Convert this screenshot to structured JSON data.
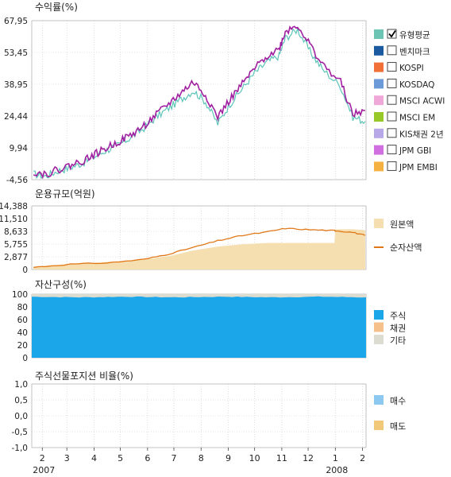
{
  "chart_data": [
    {
      "type": "line",
      "title": "수익률(%)",
      "y_ticks": [
        "67,95",
        "53,45",
        "38,95",
        "24,44",
        "9,94",
        "-4,56"
      ],
      "ylim": [
        -4.56,
        67.95
      ],
      "x": [
        "2007-01-22",
        "2007-02-05",
        "2007-02-19",
        "2007-03-05",
        "2007-03-19",
        "2007-04-02",
        "2007-04-16",
        "2007-04-30",
        "2007-05-14",
        "2007-05-28",
        "2007-06-11",
        "2007-06-25",
        "2007-07-09",
        "2007-07-23",
        "2007-08-06",
        "2007-08-20",
        "2007-09-03",
        "2007-09-17",
        "2007-10-01",
        "2007-10-15",
        "2007-10-29",
        "2007-11-05",
        "2007-11-19",
        "2007-12-03",
        "2007-12-17",
        "2008-01-07",
        "2008-01-21",
        "2008-02-04"
      ],
      "series": [
        {
          "name": "유형평균",
          "color": "#5cc4b8",
          "values": [
            -2,
            -3,
            -0.5,
            1,
            3,
            6,
            9,
            11.5,
            15,
            19,
            24,
            28,
            32,
            36,
            31,
            21,
            30,
            37,
            44,
            49,
            52,
            60,
            64,
            54,
            46,
            38,
            24,
            22
          ]
        },
        {
          "color": "#a020a0",
          "values": [
            -1,
            -2,
            0,
            2,
            4,
            7,
            10,
            13,
            16,
            20,
            25,
            30,
            35,
            40,
            34,
            24,
            32,
            39,
            46,
            52,
            55,
            63,
            66,
            57,
            48,
            40,
            25,
            27
          ]
        }
      ],
      "legend": [
        {
          "label": "유형평균",
          "color": "#6cc4b4",
          "checked": true
        },
        {
          "label": "벤치마크",
          "color": "#1c5aa0",
          "checked": false
        },
        {
          "label": "KOSPI",
          "color": "#f07038",
          "checked": false
        },
        {
          "label": "KOSDAQ",
          "color": "#6a9ad8",
          "checked": false
        },
        {
          "label": "MSCI ACWI",
          "color": "#f0a8d8",
          "checked": false
        },
        {
          "label": "MSCI EM",
          "color": "#98c828",
          "checked": false
        },
        {
          "label": "KIS채권 2년",
          "color": "#b8a8e8",
          "checked": false
        },
        {
          "label": "JPM GBI",
          "color": "#d070e0",
          "checked": false
        },
        {
          "label": "JPM EMBI",
          "color": "#f4b040",
          "checked": false
        }
      ],
      "grid": true
    },
    {
      "type": "area",
      "title": "운용규모(억원)",
      "y_ticks": [
        "14,388",
        "11,510",
        "8,633",
        "5,755",
        "2,877",
        "0"
      ],
      "ylim": [
        0,
        14388
      ],
      "x": [
        "2007-01-22",
        "2007-03-05",
        "2007-04-16",
        "2007-05-28",
        "2007-06-25",
        "2007-07-23",
        "2007-08-20",
        "2007-09-17",
        "2007-10-15",
        "2007-11-05",
        "2007-12-03",
        "2007-12-31",
        "2008-01-01",
        "2008-01-21",
        "2008-02-04"
      ],
      "series": [
        {
          "name": "원본액",
          "color": "#f5deb0",
          "values": [
            600,
            1300,
            1700,
            2300,
            3000,
            4300,
            5200,
            5700,
            6000,
            6000,
            6000,
            6000,
            9100,
            9100,
            8900
          ]
        },
        {
          "name": "순자산액",
          "color": "#e07818",
          "values": [
            500,
            1200,
            1500,
            2300,
            3500,
            5000,
            6500,
            7700,
            8500,
            9300,
            9000,
            8800,
            8800,
            8400,
            7700
          ]
        }
      ],
      "legend": [
        {
          "label": "원본액",
          "color": "#f5deb0"
        },
        {
          "label": "순자산액",
          "color": "#e07818"
        }
      ],
      "grid": true
    },
    {
      "type": "area",
      "title": "자산구성(%)",
      "y_ticks": [
        "100",
        "80",
        "60",
        "40",
        "20",
        "0"
      ],
      "ylim": [
        0,
        100
      ],
      "series": [
        {
          "name": "주식",
          "color": "#1aa6e8",
          "values": [
            96,
            95,
            96,
            95,
            96,
            95,
            96,
            95
          ]
        },
        {
          "name": "채권",
          "color": "#f5c08a",
          "values": [
            0,
            0,
            0,
            0,
            0,
            0,
            0,
            0
          ]
        },
        {
          "name": "기타",
          "color": "#dcdcd0",
          "values": [
            4,
            5,
            4,
            5,
            4,
            5,
            4,
            5
          ]
        }
      ],
      "legend": [
        {
          "label": "주식",
          "color": "#1aa6e8"
        },
        {
          "label": "채권",
          "color": "#f5c08a"
        },
        {
          "label": "기타",
          "color": "#dcdcd0"
        }
      ],
      "grid": true
    },
    {
      "type": "bar",
      "title": "주식선물포지션 비율(%)",
      "y_ticks": [
        "1,0",
        "0,5",
        "0,0",
        "-0,5",
        "-1,0"
      ],
      "ylim": [
        -1,
        1
      ],
      "series": [
        {
          "name": "매수",
          "color": "#8cc8f0",
          "values": []
        },
        {
          "name": "매도",
          "color": "#f0c878",
          "values": []
        }
      ],
      "legend": [
        {
          "label": "매수",
          "color": "#8cc8f0"
        },
        {
          "label": "매도",
          "color": "#f0c878"
        }
      ],
      "grid": true
    }
  ],
  "x_axis": {
    "month_labels": [
      "2",
      "3",
      "4",
      "5",
      "6",
      "7",
      "8",
      "9",
      "10",
      "11",
      "12",
      "1",
      "2"
    ],
    "month_dates": [
      "2007-02-01",
      "2007-03-01",
      "2007-04-01",
      "2007-05-01",
      "2007-06-01",
      "2007-07-01",
      "2007-08-01",
      "2007-09-01",
      "2007-10-01",
      "2007-11-01",
      "2007-12-01",
      "2008-01-01",
      "2008-02-01"
    ],
    "year_labels": [
      "2007",
      "2008"
    ],
    "year_dates": [
      "2007-02-01",
      "2008-01-01"
    ]
  },
  "colors": {
    "grid": "#c8c8c8",
    "axis": "#444444"
  }
}
